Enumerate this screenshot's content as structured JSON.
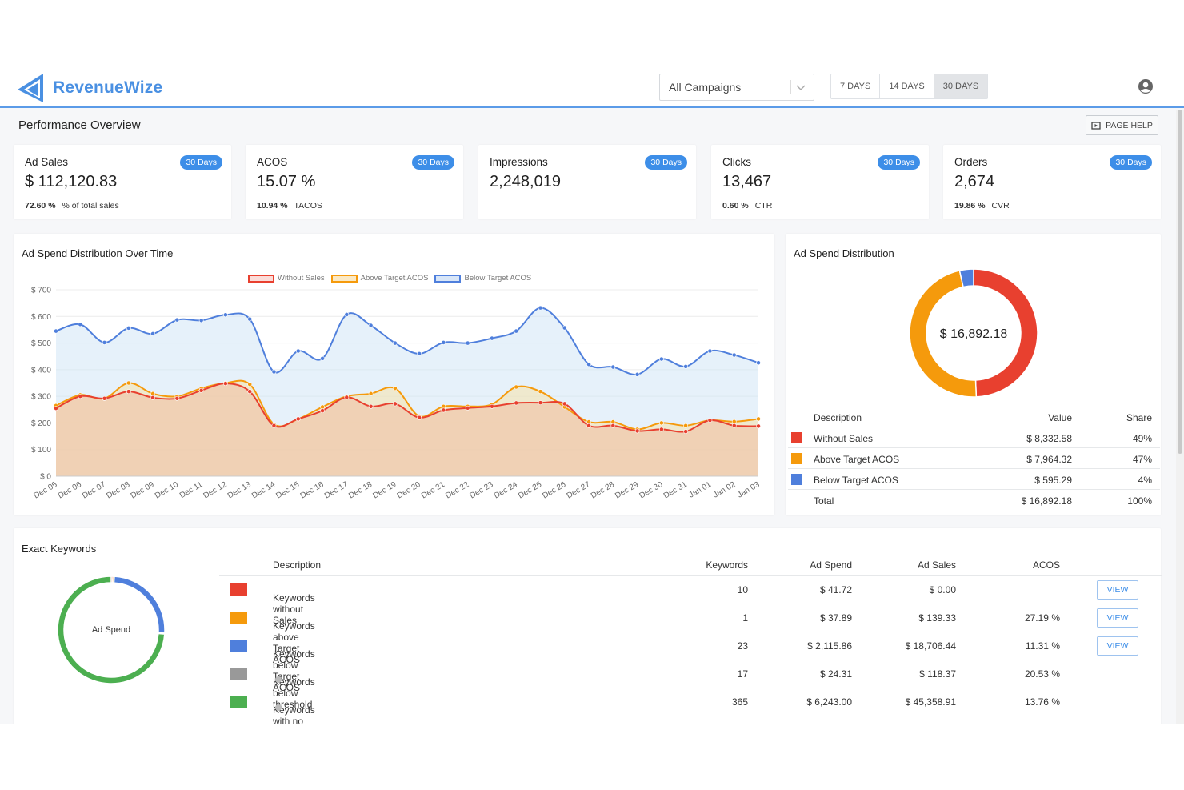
{
  "brand": {
    "name": "RevenueWize",
    "color": "#4a90e2"
  },
  "header": {
    "campaign_select": "All Campaigns",
    "day_buttons": [
      "7 DAYS",
      "14 DAYS",
      "30 DAYS"
    ],
    "active_day_button": "30 DAYS"
  },
  "page": {
    "title": "Performance Overview",
    "help_label": "PAGE HELP"
  },
  "kpis": [
    {
      "label": "Ad Sales",
      "value": "$ 112,120.83",
      "badge": "30 Days",
      "sub_value": "72.60 %",
      "sub_label": "% of total sales"
    },
    {
      "label": "ACOS",
      "value": "15.07 %",
      "badge": "30 Days",
      "sub_value": "10.94 %",
      "sub_label": "TACOS"
    },
    {
      "label": "Impressions",
      "value": "2,248,019",
      "badge": "30 Days",
      "sub_value": "",
      "sub_label": ""
    },
    {
      "label": "Clicks",
      "value": "13,467",
      "badge": "30 Days",
      "sub_value": "0.60 %",
      "sub_label": "CTR"
    },
    {
      "label": "Orders",
      "value": "2,674",
      "badge": "30 Days",
      "sub_value": "19.86 %",
      "sub_label": "CVR"
    }
  ],
  "colors": {
    "without_sales": "#e8402f",
    "above_target": "#f59a0c",
    "below_target": "#4f7fdc",
    "below_threshold": "#999999",
    "no_action": "#4caf50",
    "accent": "#3d8ee8"
  },
  "over_time": {
    "title": "Ad Spend Distribution Over Time",
    "legend": [
      "Without Sales",
      "Above Target ACOS",
      "Below Target ACOS"
    ]
  },
  "chart_data": [
    {
      "type": "area",
      "title": "Ad Spend Distribution Over Time",
      "xlabel": "",
      "ylabel": "",
      "ylim": [
        0,
        700
      ],
      "yticks": [
        "$ 0",
        "$ 100",
        "$ 200",
        "$ 300",
        "$ 400",
        "$ 500",
        "$ 600",
        "$ 700"
      ],
      "categories": [
        "Dec 05",
        "Dec 06",
        "Dec 07",
        "Dec 08",
        "Dec 09",
        "Dec 10",
        "Dec 11",
        "Dec 12",
        "Dec 13",
        "Dec 14",
        "Dec 15",
        "Dec 16",
        "Dec 17",
        "Dec 18",
        "Dec 19",
        "Dec 20",
        "Dec 21",
        "Dec 22",
        "Dec 23",
        "Dec 24",
        "Dec 25",
        "Dec 26",
        "Dec 27",
        "Dec 28",
        "Dec 29",
        "Dec 30",
        "Dec 31",
        "Jan 01",
        "Jan 02",
        "Jan 03"
      ],
      "legend_position": "top",
      "grid": true,
      "series": [
        {
          "name": "Without Sales",
          "values": [
            255,
            300,
            292,
            318,
            295,
            292,
            322,
            348,
            318,
            190,
            215,
            246,
            296,
            262,
            272,
            220,
            248,
            256,
            262,
            275,
            276,
            272,
            190,
            190,
            170,
            176,
            168,
            210,
            190,
            188
          ]
        },
        {
          "name": "Above Target ACOS",
          "values": [
            265,
            305,
            292,
            350,
            310,
            300,
            330,
            350,
            345,
            195,
            215,
            260,
            300,
            310,
            330,
            225,
            262,
            262,
            270,
            335,
            318,
            260,
            204,
            204,
            176,
            200,
            190,
            210,
            205,
            215
          ]
        },
        {
          "name": "Below Target ACOS",
          "values": [
            545,
            570,
            502,
            556,
            535,
            587,
            585,
            606,
            590,
            392,
            470,
            442,
            607,
            566,
            500,
            460,
            502,
            500,
            518,
            545,
            632,
            557,
            420,
            410,
            382,
            440,
            412,
            470,
            455,
            426
          ]
        }
      ]
    },
    {
      "type": "pie",
      "title": "Ad Spend Distribution",
      "center_label": "$ 16,892.18",
      "categories": [
        "Without Sales",
        "Above Target ACOS",
        "Below Target ACOS"
      ],
      "values": [
        8332.58,
        7964.32,
        595.29
      ]
    },
    {
      "type": "pie",
      "title": "",
      "center_label": "Ad Spend",
      "categories": [
        "Keywords without Sales",
        "Keywords above Target ACOS",
        "Keywords below Target ACOS",
        "Keywords below threshold",
        "Keywords with no required action"
      ],
      "values": [
        41.72,
        37.89,
        2115.86,
        24.31,
        6243.0
      ]
    }
  ],
  "distribution": {
    "title": "Ad Spend Distribution",
    "center_label": "$ 16,892.18",
    "headers": [
      "Description",
      "Value",
      "Share"
    ],
    "rows": [
      {
        "label": "Without Sales",
        "value": "$ 8,332.58",
        "share": "49%",
        "color": "#e8402f"
      },
      {
        "label": "Above Target ACOS",
        "value": "$ 7,964.32",
        "share": "47%",
        "color": "#f59a0c"
      },
      {
        "label": "Below Target ACOS",
        "value": "$ 595.29",
        "share": "4%",
        "color": "#4f7fdc"
      }
    ],
    "total": {
      "label": "Total",
      "value": "$ 16,892.18",
      "share": "100%"
    }
  },
  "exact_keywords": {
    "title": "Exact Keywords",
    "donut_label": "Ad Spend",
    "headers": [
      "Description",
      "Keywords",
      "Ad Spend",
      "Ad Sales",
      "ACOS"
    ],
    "view_label": "VIEW",
    "rows": [
      {
        "label": "Keywords without Sales",
        "keywords": "10",
        "spend": "$ 41.72",
        "sales": "$ 0.00",
        "acos": "",
        "color": "#e8402f",
        "view": true,
        "info": false
      },
      {
        "label": "Keywords above Target ACOS",
        "keywords": "1",
        "spend": "$ 37.89",
        "sales": "$ 139.33",
        "acos": "27.19 %",
        "color": "#f59a0c",
        "view": true,
        "info": false
      },
      {
        "label": "Keywords below Target ACOS",
        "keywords": "23",
        "spend": "$ 2,115.86",
        "sales": "$ 18,706.44",
        "acos": "11.31 %",
        "color": "#4f7fdc",
        "view": true,
        "info": false
      },
      {
        "label": "Keywords below threshold",
        "keywords": "17",
        "spend": "$ 24.31",
        "sales": "$ 118.37",
        "acos": "20.53 %",
        "color": "#999999",
        "view": false,
        "info": true
      },
      {
        "label": "Keywords with no required action",
        "keywords": "365",
        "spend": "$ 6,243.00",
        "sales": "$ 45,358.91",
        "acos": "13.76 %",
        "color": "#4caf50",
        "view": false,
        "info": true
      }
    ]
  }
}
